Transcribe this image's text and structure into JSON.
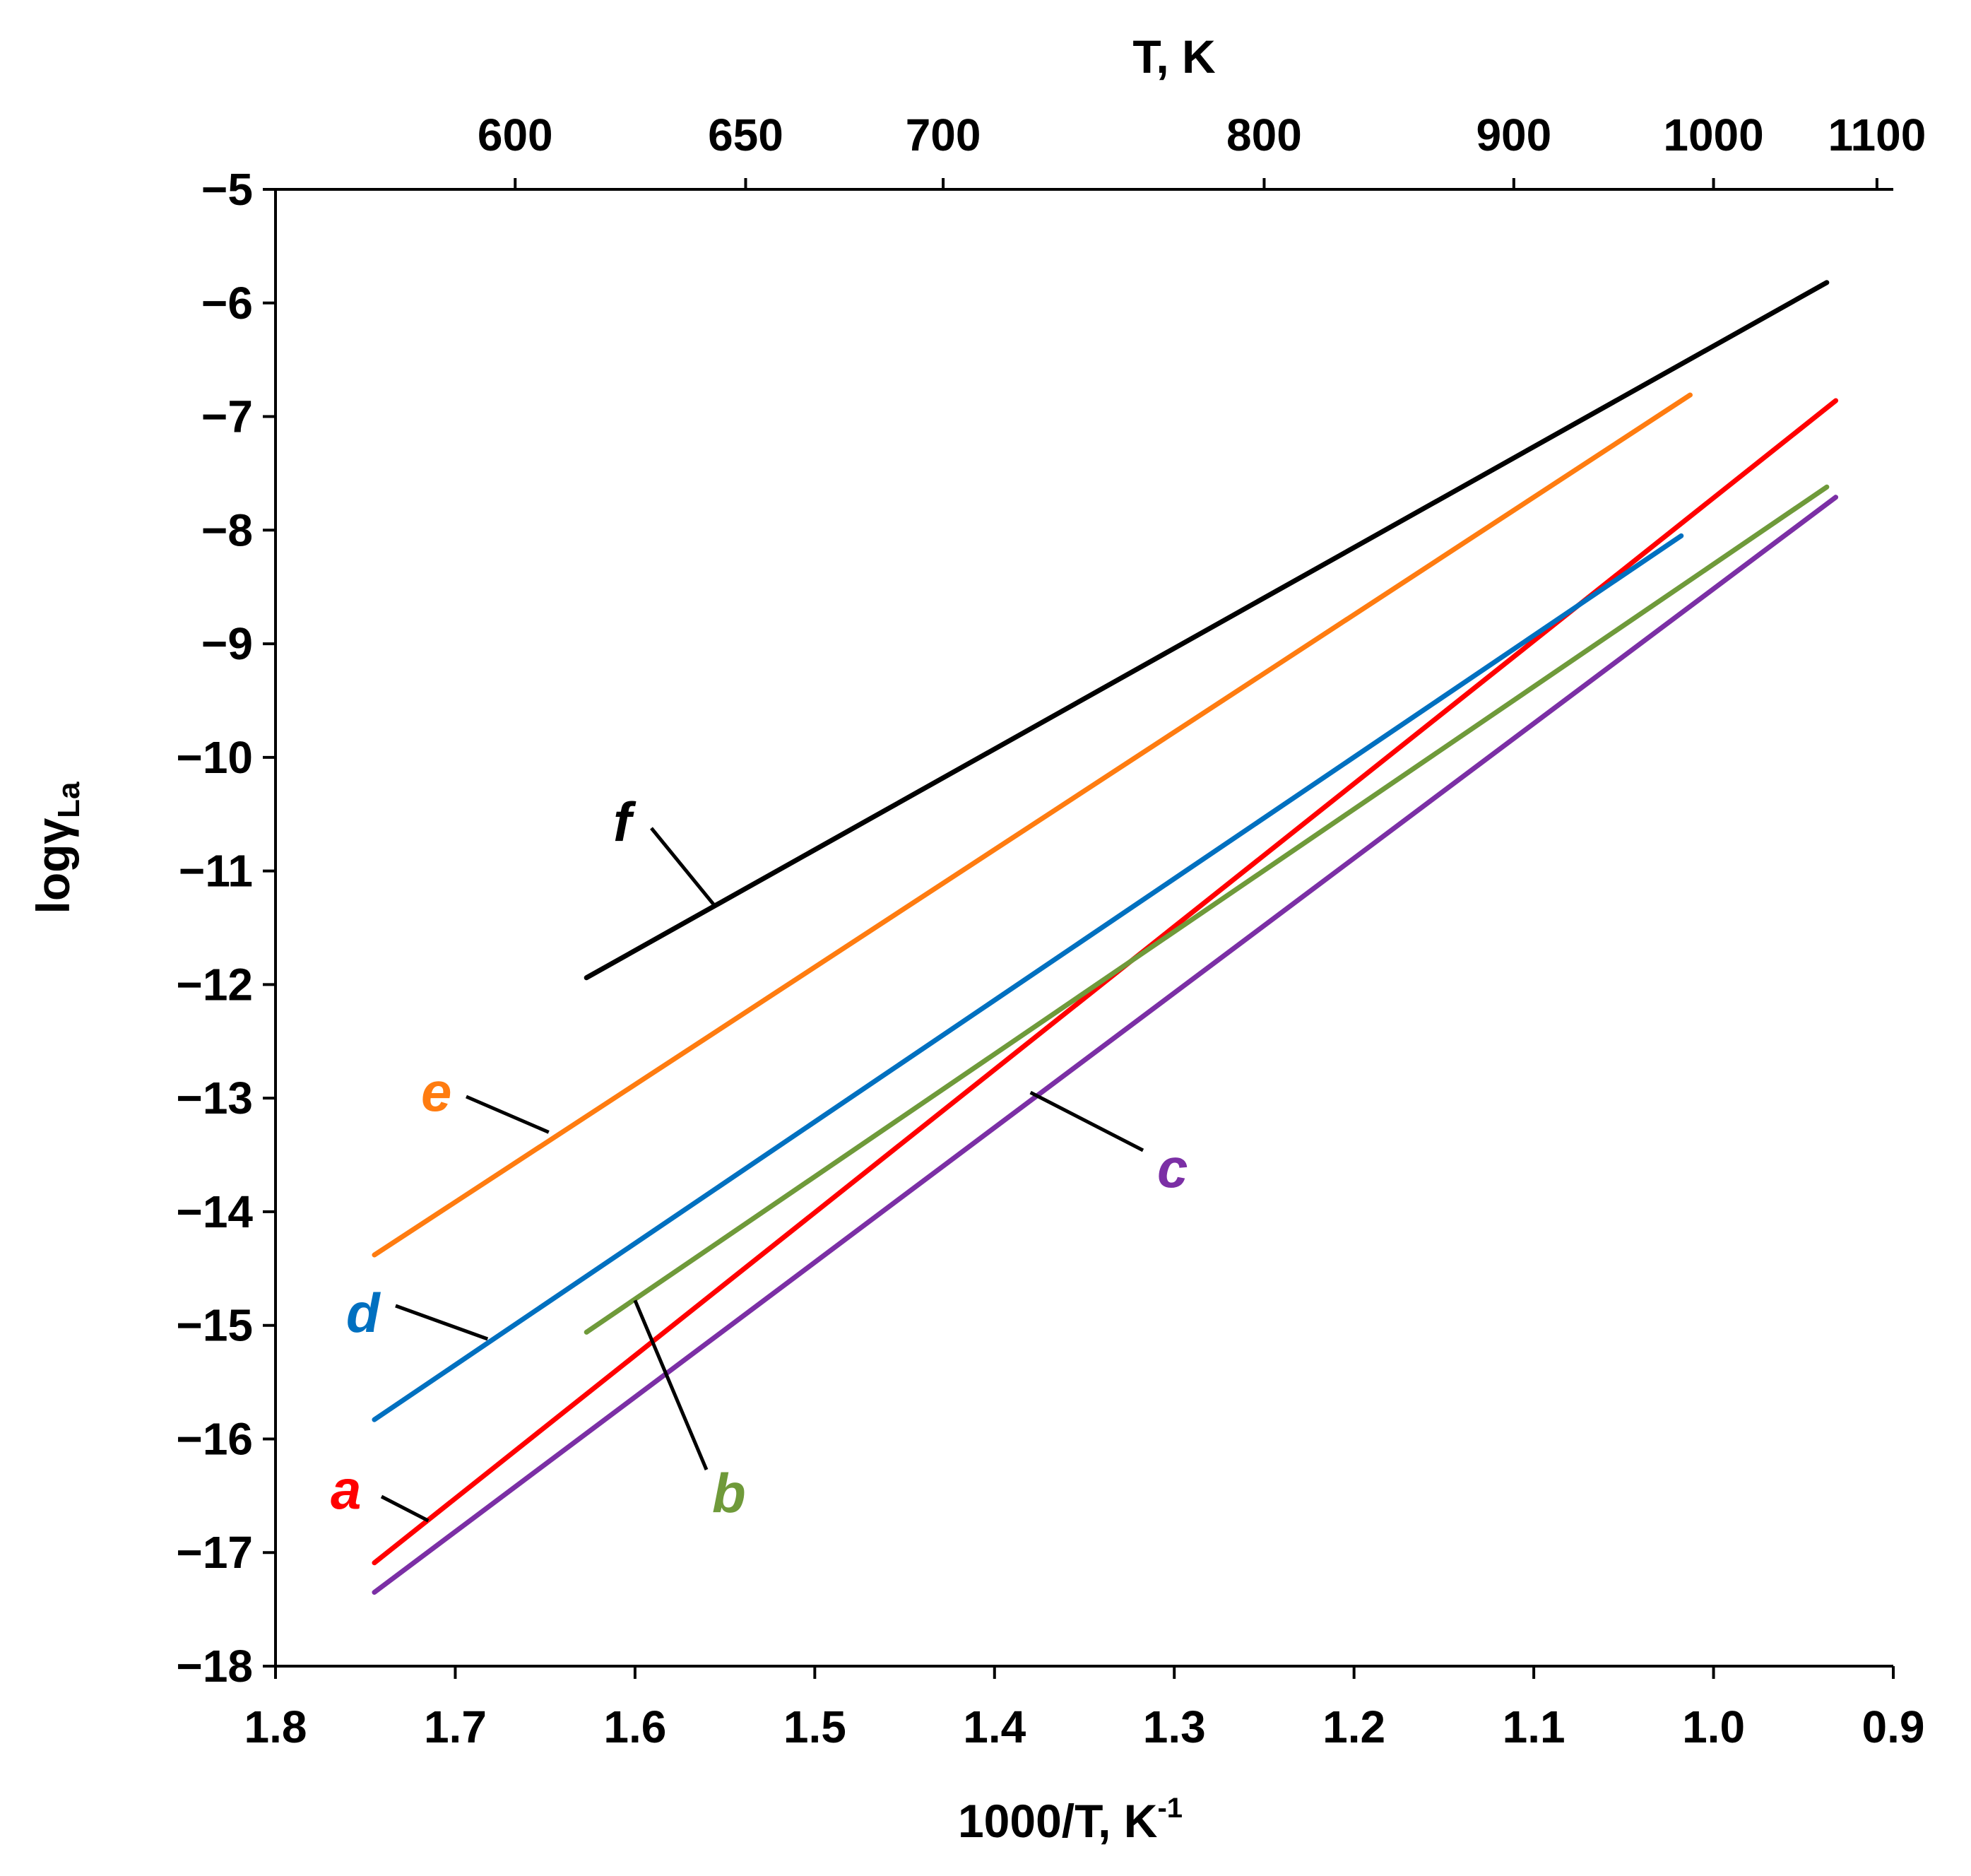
{
  "chart_data": {
    "type": "line",
    "xlabel": "1000/T, K",
    "xlabel_sup": "-1",
    "ylabel": "logγ",
    "ylabel_sub": "La",
    "top_axis_label": "T, K",
    "xlim": [
      1.8,
      0.9
    ],
    "ylim": [
      -18,
      -5
    ],
    "x_ticks": [
      1.8,
      1.7,
      1.6,
      1.5,
      1.4,
      1.3,
      1.2,
      1.1,
      1.0,
      0.9
    ],
    "x_tick_labels": [
      "1.8",
      "1.7",
      "1.6",
      "1.5",
      "1.4",
      "1.3",
      "1.2",
      "1.1",
      "1.0",
      "0.9"
    ],
    "y_ticks": [
      -5,
      -6,
      -7,
      -8,
      -9,
      -10,
      -11,
      -12,
      -13,
      -14,
      -15,
      -16,
      -17,
      -18
    ],
    "y_tick_labels": [
      "−5",
      "−6",
      "−7",
      "−8",
      "−9",
      "−10",
      "−11",
      "−12",
      "−13",
      "−14",
      "−15",
      "−16",
      "−17",
      "−18"
    ],
    "top_ticks_T": [
      600,
      650,
      700,
      800,
      900,
      1000,
      1100
    ],
    "top_tick_labels": [
      "600",
      "650",
      "700",
      "800",
      "900",
      "1000",
      "1100"
    ],
    "series": [
      {
        "name": "a",
        "color": "#ff0000",
        "x": [
          1.745,
          0.932
        ],
        "y": [
          -17.09,
          -6.86
        ],
        "leader_at": [
          1.715,
          -16.72
        ]
      },
      {
        "name": "b",
        "color": "#6f9a3a",
        "x": [
          1.627,
          0.937
        ],
        "y": [
          -15.06,
          -7.62
        ],
        "leader_at": [
          1.6,
          -14.78
        ]
      },
      {
        "name": "c",
        "color": "#7b2fa5",
        "x": [
          1.745,
          0.932
        ],
        "y": [
          -17.35,
          -7.71
        ],
        "leader_at": [
          1.38,
          -12.95
        ]
      },
      {
        "name": "d",
        "color": "#0070c0",
        "x": [
          1.745,
          1.018
        ],
        "y": [
          -15.83,
          -8.05
        ],
        "leader_at": [
          1.682,
          -15.12
        ]
      },
      {
        "name": "e",
        "color": "#ff7c10",
        "x": [
          1.745,
          1.013
        ],
        "y": [
          -14.38,
          -6.81
        ],
        "leader_at": [
          1.648,
          -13.3
        ]
      },
      {
        "name": "f",
        "color": "#000000",
        "x": [
          1.627,
          0.937
        ],
        "y": [
          -11.94,
          -5.82
        ],
        "leader_at": [
          1.556,
          -11.3
        ]
      }
    ]
  }
}
